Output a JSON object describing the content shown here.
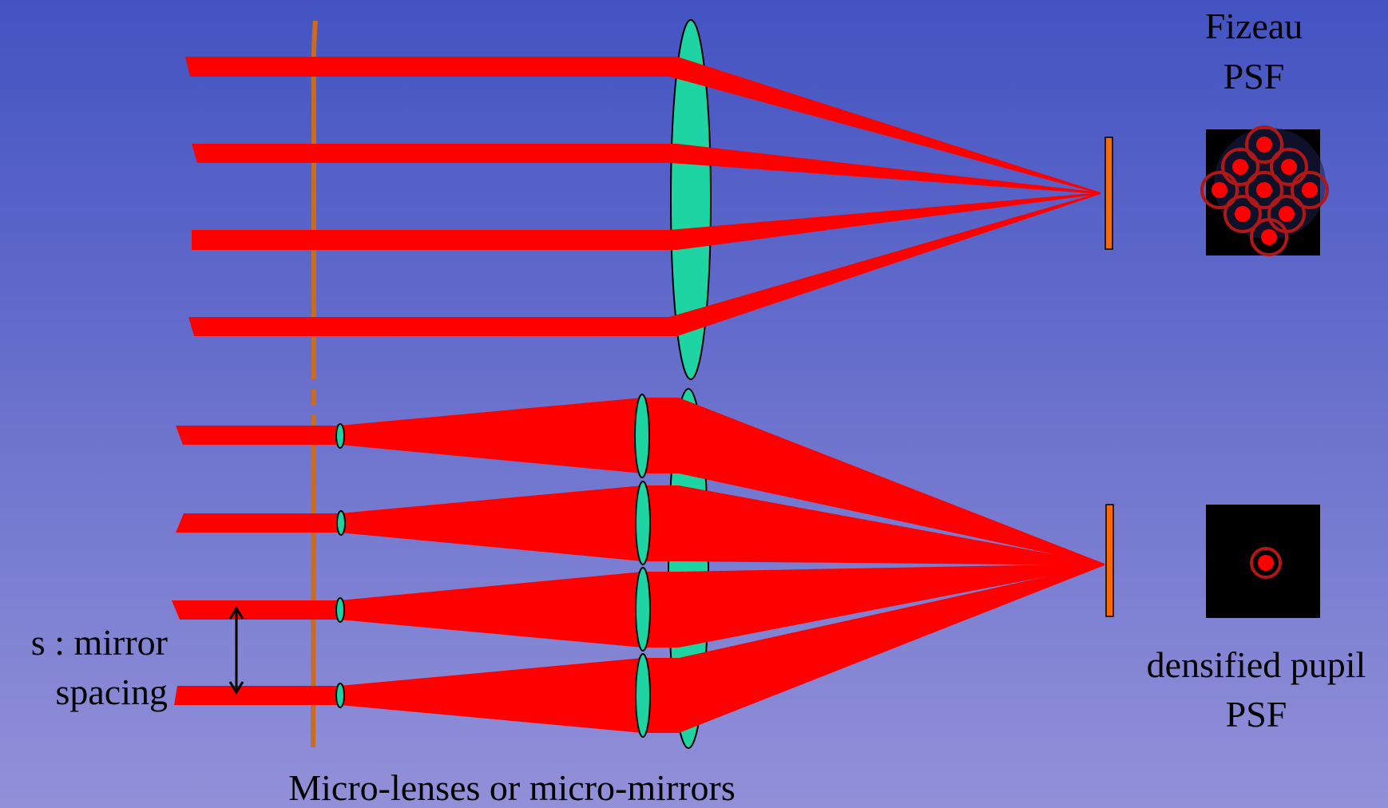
{
  "labels": {
    "fizeau_line1": "Fizeau",
    "fizeau_line2": "PSF",
    "densified_line1": "densified pupil",
    "densified_line2": "PSF",
    "spacing_line1": "s : mirror",
    "spacing_line2": "spacing",
    "bottom_caption": "Micro-lenses or micro-mirrors"
  },
  "colors": {
    "background_top": "#4353C2",
    "background_bottom": "#9290D8",
    "beam": "#FF0000",
    "lens": "#1DD4A2",
    "detector": "#FF6A00",
    "pupil_plane": "#CC6A1E",
    "psf_frame": "#000000",
    "psf_spot": "#FF0000"
  }
}
